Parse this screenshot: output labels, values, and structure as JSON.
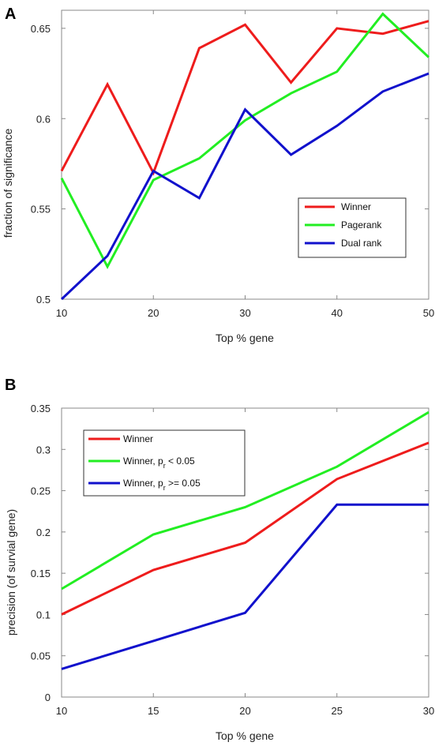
{
  "chart_data": [
    {
      "type": "line",
      "panel": "A",
      "xlabel": "Top % gene",
      "ylabel": "fraction of significance",
      "xlim": [
        10,
        50
      ],
      "ylim": [
        0.5,
        0.66
      ],
      "xticks": [
        "10",
        "20",
        "30",
        "40",
        "50"
      ],
      "yticks": [
        "0.5",
        "0.55",
        "0.6",
        "0.65"
      ],
      "legend_position": "lower-right",
      "x": [
        10,
        15,
        20,
        25,
        30,
        35,
        40,
        45,
        50
      ],
      "series": [
        {
          "name": "Winner",
          "color": "#ee1c1c",
          "values": [
            0.571,
            0.619,
            0.57,
            0.639,
            0.652,
            0.62,
            0.65,
            0.647,
            0.654
          ]
        },
        {
          "name": "Pagerank",
          "color": "#22ee22",
          "values": [
            0.567,
            0.518,
            0.566,
            0.578,
            0.599,
            0.614,
            0.626,
            0.658,
            0.634
          ]
        },
        {
          "name": "Dual rank",
          "color": "#1111cc",
          "values": [
            0.5,
            0.524,
            0.571,
            0.556,
            0.605,
            0.58,
            0.596,
            0.615,
            0.625
          ]
        }
      ]
    },
    {
      "type": "line",
      "panel": "B",
      "xlabel": "Top % gene",
      "ylabel": "precision (of survial gene)",
      "xlim": [
        10,
        30
      ],
      "ylim": [
        0,
        0.35
      ],
      "xticks": [
        "10",
        "15",
        "20",
        "25",
        "30"
      ],
      "yticks": [
        "0",
        "0.05",
        "0.1",
        "0.15",
        "0.2",
        "0.25",
        "0.3",
        "0.35"
      ],
      "legend_position": "top-left",
      "x": [
        10,
        15,
        20,
        25,
        30
      ],
      "series": [
        {
          "name": "Winner",
          "color": "#ee1c1c",
          "values": [
            0.1,
            0.154,
            0.187,
            0.264,
            0.308
          ]
        },
        {
          "name": "Winner, p",
          "name_sub": "r",
          "name_suffix": " < 0.05",
          "color": "#22ee22",
          "values": [
            0.131,
            0.197,
            0.23,
            0.279,
            0.345
          ]
        },
        {
          "name": "Winner, p",
          "name_sub": "r",
          "name_suffix": " >= 0.05",
          "color": "#1111cc",
          "values": [
            0.034,
            0.068,
            0.102,
            0.233,
            0.233
          ]
        }
      ]
    }
  ]
}
